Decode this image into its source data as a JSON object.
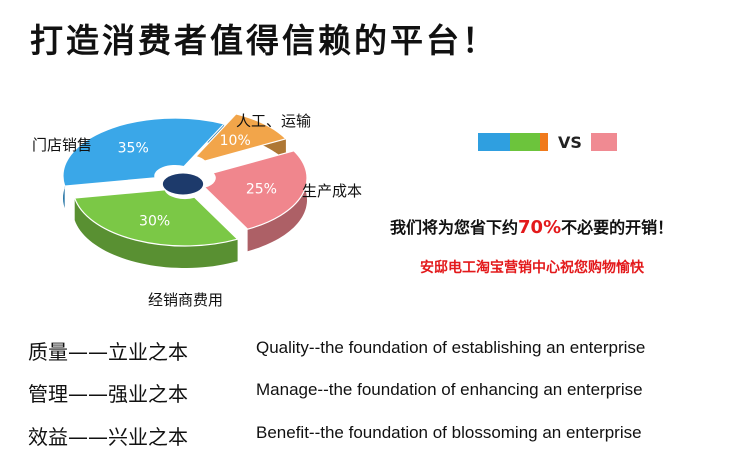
{
  "header": {
    "title": "打造消费者值得信赖的平台！"
  },
  "chart_data": {
    "type": "pie",
    "categories": [
      "门店销售",
      "人工、运输",
      "生产成本",
      "经销商费用"
    ],
    "values": [
      35,
      10,
      25,
      30
    ],
    "labels": [
      "35%",
      "10%",
      "25%",
      "30%"
    ],
    "colors": [
      "#3aa7e8",
      "#f2a54a",
      "#f0868d",
      "#7bc846"
    ]
  },
  "legend": {
    "vs_label": "VS",
    "swatch_colors": [
      "#2f9fe0",
      "#6cc43c",
      "#f07a1c",
      "#f08a92"
    ]
  },
  "slogan": {
    "prefix": "我们将为您省下约",
    "percent": "70%",
    "suffix": "不必要的开销！"
  },
  "blessing": "安邸电工淘宝营销中心祝您购物愉快",
  "mottos": [
    {
      "zh": "质量——立业之本",
      "en": "Quality--the foundation of establishing an enterprise"
    },
    {
      "zh": "管理——强业之本",
      "en": "Manage--the foundation of enhancing an enterprise"
    },
    {
      "zh": "效益——兴业之本",
      "en": "Benefit--the foundation of blossoming an enterprise"
    }
  ]
}
